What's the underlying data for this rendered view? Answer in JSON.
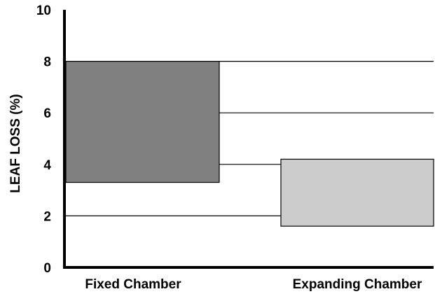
{
  "chart_data": {
    "type": "bar",
    "subtype": "floating-range",
    "title": "",
    "xlabel": "",
    "ylabel": "LEAF LOSS (%)",
    "ylim": [
      0,
      10
    ],
    "yticks": [
      "0",
      "2",
      "4",
      "6",
      "8",
      "10"
    ],
    "categories": [
      "Fixed Chamber",
      "Expanding Chamber"
    ],
    "ranges": [
      {
        "low": 3.3,
        "high": 8.0,
        "color": "#808080"
      },
      {
        "low": 1.6,
        "high": 4.2,
        "color": "#cccccc"
      }
    ],
    "reference_lines": [
      2,
      4,
      6,
      8
    ],
    "grid": false,
    "legend": "none"
  }
}
